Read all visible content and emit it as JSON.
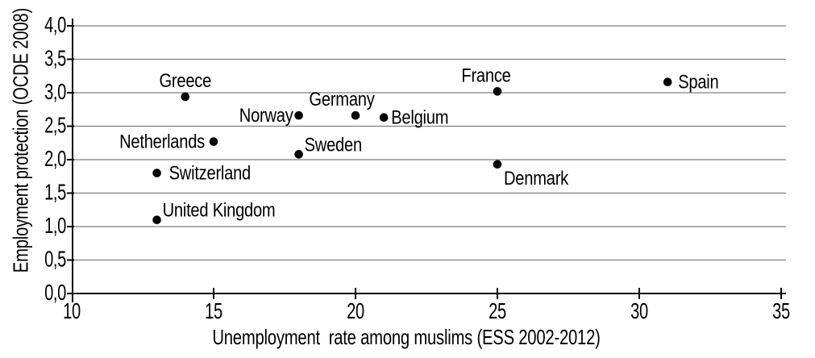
{
  "chart_data": {
    "type": "scatter",
    "title": "",
    "xlabel": "Unemployment  rate among muslims (ESS 2002-2012)",
    "ylabel": "Employment protection (OCDE 2008)",
    "xlim": [
      10,
      35
    ],
    "ylim": [
      0.0,
      4.0
    ],
    "grid": "horizontal",
    "legend": "none",
    "decimal_style": "comma",
    "grid_color": "#7f7f7f",
    "axis_color": "#000000",
    "marker_color": "#000000",
    "background_color": "#ffffff",
    "xticks": {
      "values": [
        10,
        15,
        20,
        25,
        30,
        35
      ],
      "labels": [
        "10",
        "15",
        "20",
        "25",
        "30",
        "35"
      ]
    },
    "yticks": {
      "values": [
        0,
        0.5,
        1.0,
        1.5,
        2.0,
        2.5,
        3.0,
        3.5,
        4.0
      ],
      "labels": [
        "0,0",
        "0,5",
        "1,0",
        "1,5",
        "2,0",
        "2,5",
        "3,0",
        "3,5",
        "4,0"
      ]
    },
    "points": [
      {
        "label": "Greece",
        "x": 14,
        "y": 2.94,
        "label_pos": "above"
      },
      {
        "label": "Norway",
        "x": 18,
        "y": 2.66,
        "label_pos": "left"
      },
      {
        "label": "Germany",
        "x": 20,
        "y": 2.66,
        "label_pos": "above",
        "dx": -17
      },
      {
        "label": "Belgium",
        "x": 21,
        "y": 2.63,
        "label_pos": "right"
      },
      {
        "label": "France",
        "x": 25,
        "y": 3.02,
        "label_pos": "above",
        "dx": -14
      },
      {
        "label": "Spain",
        "x": 31,
        "y": 3.16,
        "label_pos": "right",
        "dx": 4
      },
      {
        "label": "Netherlands",
        "x": 15,
        "y": 2.27,
        "label_pos": "left",
        "dx": -4
      },
      {
        "label": "Sweden",
        "x": 18,
        "y": 2.08,
        "label_pos": "above-right"
      },
      {
        "label": "Switzerland",
        "x": 13,
        "y": 1.8,
        "label_pos": "right",
        "dx": 6
      },
      {
        "label": "United Kingdom",
        "x": 13,
        "y": 1.1,
        "label_pos": "above-right"
      },
      {
        "label": "Denmark",
        "x": 25,
        "y": 1.93,
        "label_pos": "below-right"
      }
    ]
  }
}
